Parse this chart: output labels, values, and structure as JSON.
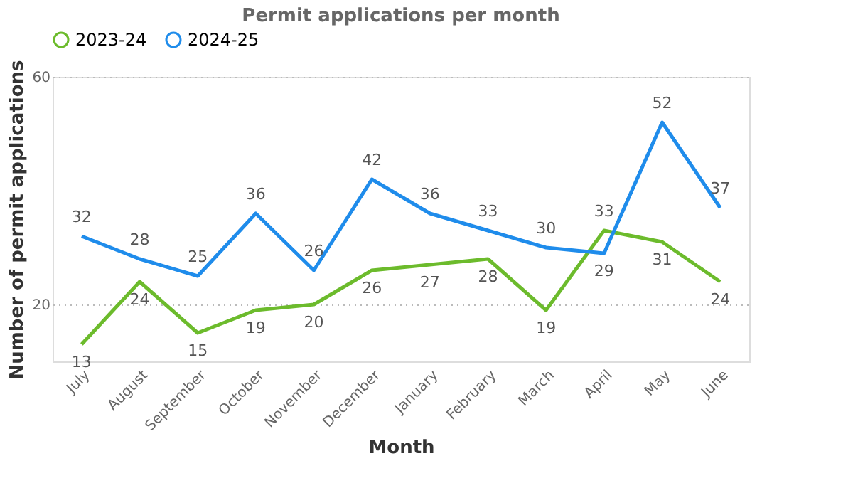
{
  "chart_data": {
    "type": "line",
    "title": "Permit applications per month",
    "xlabel": "Month",
    "ylabel": "Number of permit applications",
    "categories": [
      "July",
      "August",
      "September",
      "October",
      "November",
      "December",
      "January",
      "February",
      "March",
      "April",
      "May",
      "June"
    ],
    "series": [
      {
        "name": "2023-24",
        "color": "#6cbb2c",
        "values": [
          13,
          24,
          15,
          19,
          20,
          26,
          27,
          28,
          19,
          33,
          31,
          24
        ]
      },
      {
        "name": "2024-25",
        "color": "#1f8ceb",
        "values": [
          32,
          28,
          25,
          36,
          26,
          42,
          36,
          33,
          30,
          29,
          52,
          37
        ]
      }
    ],
    "ylim": [
      10,
      60
    ],
    "yticks": [
      20,
      60
    ],
    "grid": "y",
    "legend": "top",
    "data_labels": true,
    "marker": "none",
    "line_style": "solid"
  }
}
